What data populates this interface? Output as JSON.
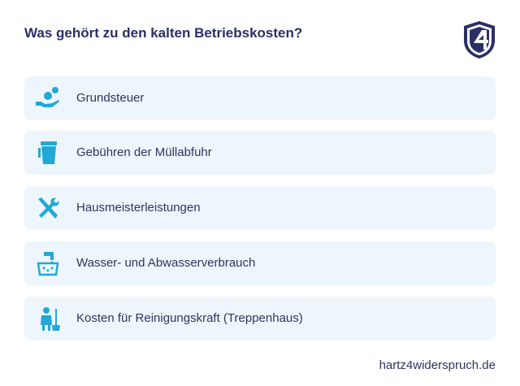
{
  "header": {
    "title": "Was gehört zu den kalten Betriebskosten?"
  },
  "items": [
    {
      "label": "Grundsteuer"
    },
    {
      "label": "Gebühren der Müllabfuhr"
    },
    {
      "label": "Hausmeisterleistungen"
    },
    {
      "label": "Wasser- und Abwasserverbrauch"
    },
    {
      "label": "Kosten für Reinigungskraft (Treppenhaus)"
    }
  ],
  "footer": {
    "text": "hartz4widerspruch.de"
  }
}
